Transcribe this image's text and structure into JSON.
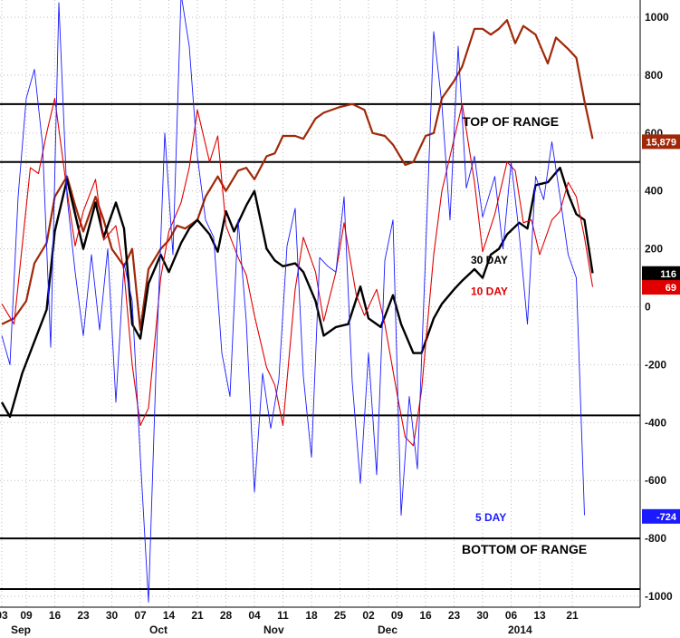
{
  "chart_data": {
    "type": "line",
    "title": "",
    "xlabel": "",
    "ylabel": "",
    "ylim": [
      -1000,
      1000
    ],
    "y_ticks": [
      1000,
      800,
      600,
      400,
      200,
      0,
      -200,
      -400,
      -600,
      -800,
      -1000
    ],
    "x_tick_labels": [
      "03",
      "09",
      "16",
      "23",
      "30",
      "07",
      "14",
      "21",
      "28",
      "04",
      "11",
      "18",
      "25",
      "02",
      "09",
      "16",
      "23",
      "30",
      "06",
      "13",
      "21"
    ],
    "x_tick_days": [
      0,
      6,
      13,
      20,
      27,
      34,
      41,
      48,
      55,
      62,
      69,
      76,
      83,
      90,
      97,
      104,
      111,
      118,
      125,
      132,
      140
    ],
    "month_labels": [
      {
        "label": "Sep",
        "day": 0
      },
      {
        "label": "Oct",
        "day": 34
      },
      {
        "label": "Nov",
        "day": 62
      },
      {
        "label": "Dec",
        "day": 90
      },
      {
        "label": "2014",
        "day": 122
      }
    ],
    "grid": true,
    "range_lines": [
      700,
      500,
      -375,
      -800,
      -975
    ],
    "annotations": [
      {
        "text": "TOP OF RANGE",
        "y": 640,
        "color": "#000000"
      },
      {
        "text": "BOTTOM OF RANGE",
        "y": -838,
        "color": "#000000"
      },
      {
        "text": "30 DAY",
        "y": 165,
        "color": "#000000"
      },
      {
        "text": "10 DAY",
        "y": 56,
        "color": "#e00000"
      },
      {
        "text": "5 DAY",
        "y": -725,
        "color": "#1a1aff"
      }
    ],
    "last_value_badges": [
      {
        "text": "15,879",
        "y": 570,
        "color": "#a02808"
      },
      {
        "text": "116",
        "y": 115,
        "color": "#000000"
      },
      {
        "text": "69",
        "y": 67,
        "color": "#e00000"
      },
      {
        "text": "-724",
        "y": -724,
        "color": "#1a1aff"
      }
    ],
    "series": [
      {
        "key": "orange",
        "color": "#a02808",
        "values": [
          [
            0,
            -60
          ],
          [
            3,
            -40
          ],
          [
            6,
            20
          ],
          [
            8,
            150
          ],
          [
            11,
            220
          ],
          [
            13,
            380
          ],
          [
            16,
            450
          ],
          [
            18,
            350
          ],
          [
            20,
            260
          ],
          [
            23,
            380
          ],
          [
            25,
            300
          ],
          [
            27,
            200
          ],
          [
            30,
            140
          ],
          [
            32,
            200
          ],
          [
            34,
            -80
          ],
          [
            36,
            130
          ],
          [
            39,
            200
          ],
          [
            41,
            230
          ],
          [
            43,
            280
          ],
          [
            45,
            270
          ],
          [
            48,
            300
          ],
          [
            50,
            380
          ],
          [
            53,
            450
          ],
          [
            55,
            400
          ],
          [
            58,
            470
          ],
          [
            60,
            480
          ],
          [
            62,
            440
          ],
          [
            65,
            520
          ],
          [
            67,
            530
          ],
          [
            69,
            590
          ],
          [
            72,
            590
          ],
          [
            74,
            580
          ],
          [
            77,
            650
          ],
          [
            79,
            670
          ],
          [
            83,
            690
          ],
          [
            86,
            700
          ],
          [
            89,
            680
          ],
          [
            91,
            600
          ],
          [
            94,
            590
          ],
          [
            96,
            560
          ],
          [
            99,
            490
          ],
          [
            101,
            500
          ],
          [
            104,
            590
          ],
          [
            106,
            600
          ],
          [
            108,
            720
          ],
          [
            111,
            780
          ],
          [
            113,
            830
          ],
          [
            116,
            960
          ],
          [
            118,
            960
          ],
          [
            120,
            940
          ],
          [
            122,
            960
          ],
          [
            124,
            990
          ],
          [
            126,
            910
          ],
          [
            128,
            970
          ],
          [
            131,
            940
          ],
          [
            134,
            840
          ],
          [
            136,
            930
          ],
          [
            139,
            890
          ],
          [
            141,
            860
          ],
          [
            143,
            710
          ],
          [
            145,
            580
          ]
        ],
        "width": 2.2
      },
      {
        "key": "thirty_day",
        "name": "30 DAY",
        "color": "#000000",
        "values": [
          [
            0,
            -330
          ],
          [
            2,
            -380
          ],
          [
            5,
            -230
          ],
          [
            8,
            -120
          ],
          [
            11,
            -10
          ],
          [
            13,
            260
          ],
          [
            16,
            440
          ],
          [
            18,
            320
          ],
          [
            20,
            200
          ],
          [
            23,
            360
          ],
          [
            25,
            240
          ],
          [
            28,
            360
          ],
          [
            30,
            270
          ],
          [
            32,
            -60
          ],
          [
            34,
            -110
          ],
          [
            36,
            80
          ],
          [
            39,
            180
          ],
          [
            41,
            120
          ],
          [
            44,
            220
          ],
          [
            46,
            270
          ],
          [
            48,
            300
          ],
          [
            51,
            250
          ],
          [
            53,
            190
          ],
          [
            55,
            330
          ],
          [
            57,
            260
          ],
          [
            60,
            350
          ],
          [
            62,
            400
          ],
          [
            65,
            200
          ],
          [
            67,
            160
          ],
          [
            69,
            140
          ],
          [
            72,
            150
          ],
          [
            74,
            120
          ],
          [
            77,
            20
          ],
          [
            79,
            -100
          ],
          [
            82,
            -70
          ],
          [
            85,
            -60
          ],
          [
            88,
            70
          ],
          [
            90,
            -40
          ],
          [
            93,
            -70
          ],
          [
            96,
            40
          ],
          [
            98,
            -60
          ],
          [
            101,
            -160
          ],
          [
            103,
            -160
          ],
          [
            106,
            -40
          ],
          [
            108,
            10
          ],
          [
            111,
            60
          ],
          [
            113,
            90
          ],
          [
            116,
            130
          ],
          [
            118,
            100
          ],
          [
            120,
            180
          ],
          [
            122,
            200
          ],
          [
            124,
            250
          ],
          [
            127,
            290
          ],
          [
            129,
            270
          ],
          [
            131,
            420
          ],
          [
            134,
            430
          ],
          [
            137,
            480
          ],
          [
            139,
            390
          ],
          [
            141,
            320
          ],
          [
            143,
            300
          ],
          [
            145,
            116
          ]
        ],
        "width": 2.4
      },
      {
        "key": "ten_day",
        "name": "10 DAY",
        "color": "#e00000",
        "values": [
          [
            0,
            10
          ],
          [
            3,
            -60
          ],
          [
            5,
            210
          ],
          [
            7,
            480
          ],
          [
            9,
            460
          ],
          [
            11,
            600
          ],
          [
            13,
            720
          ],
          [
            16,
            400
          ],
          [
            18,
            210
          ],
          [
            20,
            330
          ],
          [
            23,
            440
          ],
          [
            25,
            230
          ],
          [
            28,
            280
          ],
          [
            30,
            120
          ],
          [
            32,
            -200
          ],
          [
            34,
            -410
          ],
          [
            36,
            -350
          ],
          [
            39,
            100
          ],
          [
            41,
            260
          ],
          [
            44,
            360
          ],
          [
            46,
            480
          ],
          [
            48,
            680
          ],
          [
            51,
            500
          ],
          [
            53,
            590
          ],
          [
            55,
            280
          ],
          [
            58,
            170
          ],
          [
            60,
            110
          ],
          [
            62,
            -30
          ],
          [
            65,
            -210
          ],
          [
            67,
            -270
          ],
          [
            69,
            -410
          ],
          [
            72,
            60
          ],
          [
            74,
            240
          ],
          [
            77,
            120
          ],
          [
            79,
            -50
          ],
          [
            82,
            120
          ],
          [
            84,
            290
          ],
          [
            87,
            40
          ],
          [
            89,
            -30
          ],
          [
            92,
            60
          ],
          [
            94,
            -60
          ],
          [
            97,
            -300
          ],
          [
            99,
            -450
          ],
          [
            101,
            -480
          ],
          [
            103,
            -290
          ],
          [
            106,
            180
          ],
          [
            108,
            400
          ],
          [
            111,
            580
          ],
          [
            113,
            700
          ],
          [
            116,
            430
          ],
          [
            118,
            190
          ],
          [
            121,
            320
          ],
          [
            124,
            500
          ],
          [
            126,
            470
          ],
          [
            128,
            290
          ],
          [
            130,
            300
          ],
          [
            132,
            180
          ],
          [
            135,
            300
          ],
          [
            137,
            330
          ],
          [
            139,
            430
          ],
          [
            141,
            380
          ],
          [
            143,
            240
          ],
          [
            145,
            69
          ]
        ],
        "width": 1.1
      },
      {
        "key": "five_day",
        "name": "5 DAY",
        "color": "#1a1aff",
        "values": [
          [
            0,
            -100
          ],
          [
            2,
            -200
          ],
          [
            4,
            380
          ],
          [
            6,
            720
          ],
          [
            8,
            820
          ],
          [
            10,
            560
          ],
          [
            12,
            -140
          ],
          [
            14,
            1050
          ],
          [
            16,
            380
          ],
          [
            18,
            120
          ],
          [
            20,
            -100
          ],
          [
            22,
            180
          ],
          [
            24,
            -80
          ],
          [
            26,
            200
          ],
          [
            28,
            -330
          ],
          [
            30,
            150
          ],
          [
            32,
            20
          ],
          [
            34,
            -520
          ],
          [
            36,
            -1020
          ],
          [
            38,
            -150
          ],
          [
            40,
            600
          ],
          [
            42,
            180
          ],
          [
            44,
            1080
          ],
          [
            46,
            900
          ],
          [
            48,
            520
          ],
          [
            50,
            300
          ],
          [
            52,
            240
          ],
          [
            54,
            -160
          ],
          [
            56,
            -310
          ],
          [
            58,
            300
          ],
          [
            60,
            -50
          ],
          [
            62,
            -640
          ],
          [
            64,
            -230
          ],
          [
            66,
            -420
          ],
          [
            68,
            -250
          ],
          [
            70,
            210
          ],
          [
            72,
            340
          ],
          [
            74,
            -240
          ],
          [
            76,
            -520
          ],
          [
            78,
            170
          ],
          [
            80,
            140
          ],
          [
            82,
            120
          ],
          [
            84,
            380
          ],
          [
            86,
            -260
          ],
          [
            88,
            -610
          ],
          [
            90,
            -160
          ],
          [
            92,
            -580
          ],
          [
            94,
            160
          ],
          [
            96,
            300
          ],
          [
            98,
            -720
          ],
          [
            100,
            -310
          ],
          [
            102,
            -560
          ],
          [
            104,
            180
          ],
          [
            106,
            950
          ],
          [
            108,
            700
          ],
          [
            110,
            300
          ],
          [
            112,
            900
          ],
          [
            114,
            410
          ],
          [
            116,
            520
          ],
          [
            118,
            310
          ],
          [
            121,
            450
          ],
          [
            123,
            200
          ],
          [
            125,
            500
          ],
          [
            127,
            250
          ],
          [
            129,
            -60
          ],
          [
            131,
            450
          ],
          [
            133,
            370
          ],
          [
            135,
            570
          ],
          [
            137,
            380
          ],
          [
            139,
            180
          ],
          [
            141,
            100
          ],
          [
            143,
            -720
          ]
        ],
        "width": 0.9
      }
    ]
  }
}
